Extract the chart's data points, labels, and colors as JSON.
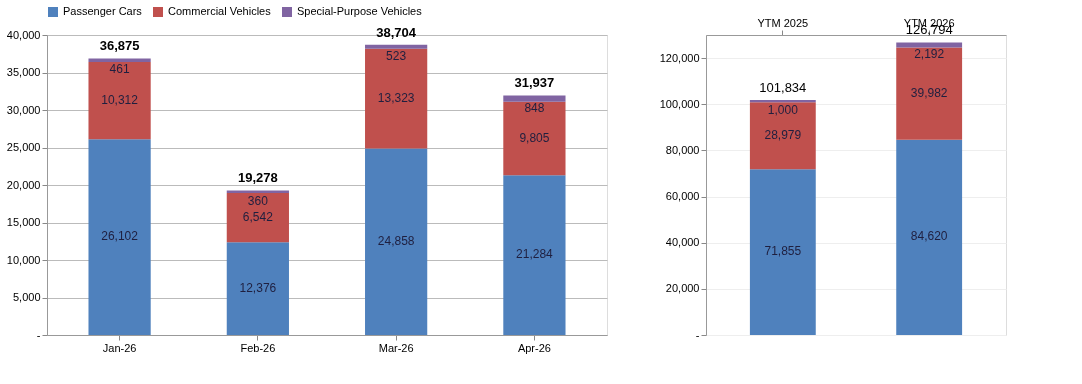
{
  "chart_data": [
    {
      "type": "bar",
      "stacked": true,
      "categories": [
        "Jan-26",
        "Feb-26",
        "Mar-26",
        "Apr-26"
      ],
      "series": [
        {
          "name": "Passenger Cars",
          "color": "#4f81bd",
          "values": [
            26102,
            12376,
            24858,
            21284
          ],
          "value_labels": [
            "26,102",
            "12,376",
            "24,858",
            "21,284"
          ]
        },
        {
          "name": "Commercial Vehicles",
          "color": "#c0504d",
          "values": [
            10312,
            6542,
            13323,
            9805
          ],
          "value_labels": [
            "10,312",
            "6,542",
            "13,323",
            "9,805"
          ]
        },
        {
          "name": "Special-Purpose Vehicles",
          "color": "#8064a2",
          "values": [
            461,
            360,
            523,
            848
          ],
          "value_labels": [
            "461",
            "360",
            "523",
            "848"
          ]
        }
      ],
      "totals": [
        "36,875",
        "19,278",
        "38,704",
        "31,937"
      ],
      "ylim": [
        0,
        40000
      ],
      "yticks": [
        {
          "value": 0,
          "label": "-"
        },
        {
          "value": 5000,
          "label": "5,000"
        },
        {
          "value": 10000,
          "label": "10,000"
        },
        {
          "value": 15000,
          "label": "15,000"
        },
        {
          "value": 20000,
          "label": "20,000"
        },
        {
          "value": 25000,
          "label": "25,000"
        },
        {
          "value": 30000,
          "label": "30,000"
        },
        {
          "value": 35000,
          "label": "35,000"
        },
        {
          "value": 40000,
          "label": "40,000"
        }
      ],
      "grid": "y",
      "legend": "top"
    },
    {
      "type": "bar",
      "stacked": true,
      "categories": [
        "YTM 2025",
        "YTM 2026"
      ],
      "series": [
        {
          "color": "#4f81bd",
          "values": [
            71855,
            84620
          ],
          "value_labels": [
            "71,855",
            "84,620"
          ]
        },
        {
          "color": "#c0504d",
          "values": [
            28979,
            39982
          ],
          "value_labels": [
            "28,979",
            "39,982"
          ]
        },
        {
          "color": "#8064a2",
          "values": [
            1000,
            2192
          ],
          "value_labels": [
            "1,000",
            "2,192"
          ]
        }
      ],
      "totals": [
        "101,834",
        "126,794"
      ],
      "ylim": [
        0,
        130000
      ],
      "yticks": [
        {
          "value": 0,
          "label": "-"
        },
        {
          "value": 20000,
          "label": "20,000"
        },
        {
          "value": 40000,
          "label": "40,000"
        },
        {
          "value": 60000,
          "label": "60,000"
        },
        {
          "value": 80000,
          "label": "80,000"
        },
        {
          "value": 100000,
          "label": "100,000"
        },
        {
          "value": 120000,
          "label": "120,000"
        }
      ],
      "grid": "y"
    }
  ]
}
